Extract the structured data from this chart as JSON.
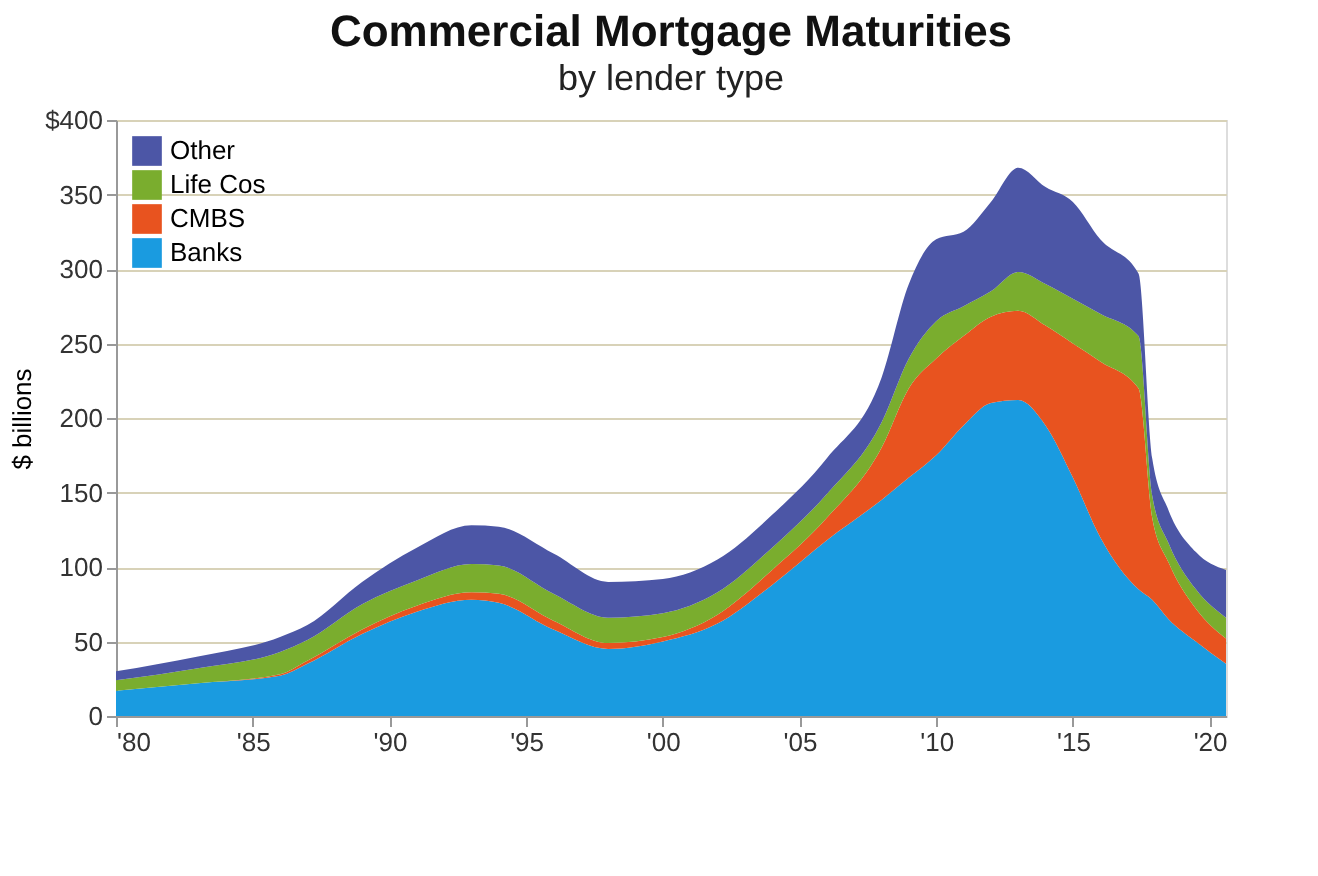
{
  "chart_data": {
    "type": "area",
    "stacked": true,
    "title": "Commercial Mortgage Maturities",
    "subtitle": "by lender type",
    "ylabel": "$ billions",
    "x": [
      1980,
      1983,
      1986,
      1987,
      1989,
      1991,
      1993,
      1994,
      1996,
      1998,
      2000,
      2002,
      2004,
      2006,
      2008,
      2009,
      2010,
      2011,
      2012,
      2013,
      2014,
      2015,
      2016,
      2017.4,
      2017.9,
      2018.5,
      2019.5,
      2020.6
    ],
    "series": [
      {
        "name": "Banks",
        "color": "#1a9be0",
        "values": [
          17,
          22,
          27,
          35,
          55,
          70,
          78,
          76,
          58,
          45,
          50,
          62,
          88,
          118,
          145,
          160,
          175,
          195,
          210,
          212,
          195,
          160,
          120,
          85,
          78,
          65,
          50,
          35
        ]
      },
      {
        "name": "CMBS",
        "color": "#e8531f",
        "values": [
          0,
          0,
          1,
          2,
          3,
          4,
          5,
          6,
          6,
          4,
          3,
          6,
          10,
          15,
          35,
          60,
          65,
          60,
          58,
          60,
          67,
          90,
          118,
          135,
          55,
          38,
          22,
          17
        ]
      },
      {
        "name": "Life Cos",
        "color": "#7aad2e",
        "values": [
          7,
          10,
          15,
          14,
          17,
          17,
          19,
          19,
          18,
          17,
          16,
          15,
          15,
          16,
          17,
          20,
          25,
          20,
          17,
          26,
          28,
          30,
          32,
          35,
          15,
          13,
          13,
          14
        ]
      },
      {
        "name": "Other",
        "color": "#4c56a6",
        "values": [
          6,
          8,
          10,
          10,
          15,
          22,
          26,
          26,
          27,
          24,
          23,
          22,
          22,
          24,
          30,
          50,
          55,
          50,
          60,
          70,
          65,
          65,
          50,
          42,
          25,
          22,
          25,
          32
        ]
      }
    ],
    "xlim": [
      1980,
      2020.6
    ],
    "xticks": [
      {
        "value": 1980,
        "label": "'80"
      },
      {
        "value": 1985,
        "label": "'85"
      },
      {
        "value": 1990,
        "label": "'90"
      },
      {
        "value": 1995,
        "label": "'95"
      },
      {
        "value": 2000,
        "label": "'00"
      },
      {
        "value": 2005,
        "label": "'05"
      },
      {
        "value": 2010,
        "label": "'10"
      },
      {
        "value": 2015,
        "label": "'15"
      },
      {
        "value": 2020,
        "label": "'20"
      }
    ],
    "ylim": [
      0,
      400
    ],
    "yticks": [
      0,
      50,
      100,
      150,
      200,
      250,
      300,
      350,
      {
        "value": 400,
        "label": "$400"
      }
    ],
    "grid": "y",
    "legend": "top left"
  }
}
